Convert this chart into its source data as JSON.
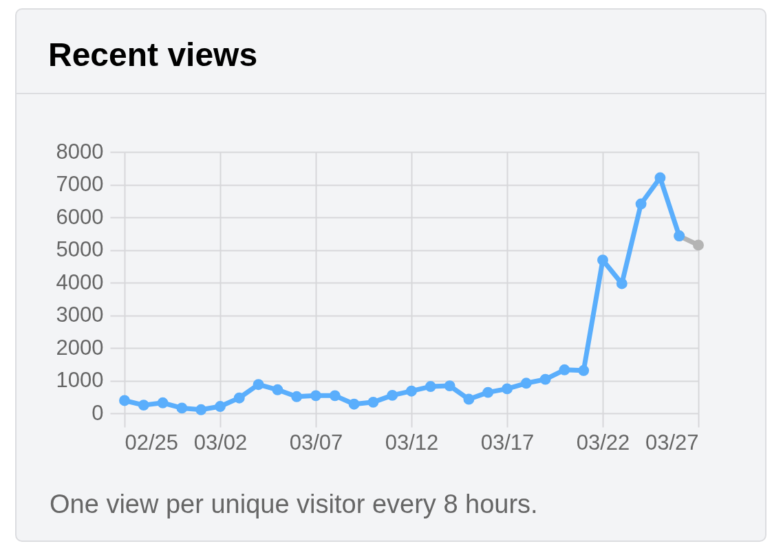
{
  "chart_data": {
    "type": "line",
    "title": "Recent views",
    "annotations": [
      "One view per unique visitor every 8 hours."
    ],
    "x": [
      "--02-25",
      "--02-26",
      "--02-27",
      "--02-28",
      "--03-01",
      "--03-02",
      "--03-03",
      "--03-04",
      "--03-05",
      "--03-06",
      "--03-07",
      "--03-08",
      "--03-09",
      "--03-10",
      "--03-11",
      "--03-12",
      "--03-13",
      "--03-14",
      "--03-15",
      "--03-16",
      "--03-17",
      "--03-18",
      "--03-19",
      "--03-20",
      "--03-21",
      "--03-22",
      "--03-23",
      "--03-24",
      "--03-25",
      "--03-26"
    ],
    "series": [
      {
        "color": "#5aaefc",
        "values": [
          390,
          250,
          320,
          160,
          110,
          210,
          470,
          880,
          720,
          510,
          540,
          540,
          280,
          340,
          550,
          680,
          820,
          840,
          430,
          640,
          750,
          920,
          1040,
          1330,
          1310,
          4690,
          3970,
          6410,
          7210,
          5430
        ]
      },
      {
        "color": "#b4b4b4",
        "x": [
          "--03-26",
          "--03-27"
        ],
        "values": [
          5430,
          5150
        ]
      }
    ],
    "xlim": [
      "--02-25",
      "--03-27"
    ],
    "xticks": [
      {
        "value": "--02-25",
        "label": "02/25"
      },
      {
        "value": "--03-02",
        "label": "03/02"
      },
      {
        "value": "--03-07",
        "label": "03/07"
      },
      {
        "value": "--03-12",
        "label": "03/12"
      },
      {
        "value": "--03-17",
        "label": "03/17"
      },
      {
        "value": "--03-22",
        "label": "03/22"
      },
      {
        "value": "--03-27",
        "label": "03/27"
      }
    ],
    "ylim": [
      0,
      8000
    ],
    "yticks": [
      0,
      1000,
      2000,
      3000,
      4000,
      5000,
      6000,
      7000,
      8000
    ],
    "grid": true,
    "marker": "circle",
    "line_style": "solid"
  }
}
